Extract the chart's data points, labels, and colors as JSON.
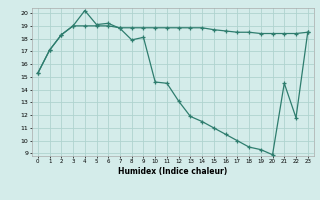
{
  "xlabel": "Humidex (Indice chaleur)",
  "xlim": [
    -0.5,
    23.5
  ],
  "ylim": [
    8.8,
    20.4
  ],
  "yticks": [
    9,
    10,
    11,
    12,
    13,
    14,
    15,
    16,
    17,
    18,
    19,
    20
  ],
  "xticks": [
    0,
    1,
    2,
    3,
    4,
    5,
    6,
    7,
    8,
    9,
    10,
    11,
    12,
    13,
    14,
    15,
    16,
    17,
    18,
    19,
    20,
    21,
    22,
    23
  ],
  "line_color": "#2e7d6e",
  "bg_color": "#d4ecea",
  "grid_color": "#afd4cf",
  "series1_x": [
    0,
    1,
    2,
    3,
    4,
    5,
    6,
    7,
    8,
    9,
    10,
    11,
    12,
    13,
    14,
    15,
    16,
    17,
    18,
    19,
    20,
    21,
    22,
    23
  ],
  "series1_y": [
    15.3,
    17.1,
    18.3,
    19.0,
    20.2,
    19.1,
    19.2,
    18.8,
    17.9,
    18.1,
    14.6,
    14.5,
    13.1,
    11.9,
    11.5,
    11.0,
    10.5,
    10.0,
    9.5,
    9.3,
    8.9,
    14.5,
    11.8,
    18.5
  ],
  "series2_x": [
    0,
    1,
    2,
    3,
    4,
    5,
    6,
    7,
    8,
    9,
    10,
    11,
    12,
    13,
    14,
    15,
    16,
    17,
    18,
    19,
    20,
    21,
    22,
    23
  ],
  "series2_y": [
    15.3,
    17.1,
    18.3,
    19.0,
    19.0,
    19.0,
    19.0,
    18.85,
    18.85,
    18.85,
    18.85,
    18.85,
    18.85,
    18.85,
    18.85,
    18.7,
    18.6,
    18.5,
    18.5,
    18.4,
    18.4,
    18.4,
    18.4,
    18.5
  ]
}
